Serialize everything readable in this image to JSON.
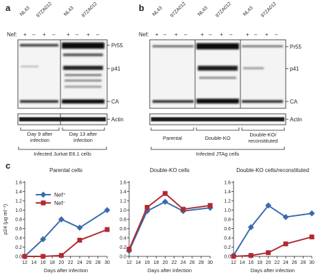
{
  "panel_a": {
    "label": "a",
    "lanes": [
      "NL43",
      "97ZA012",
      "NL43",
      "97ZA012"
    ],
    "nef_label": "Nef:",
    "nef_signs": [
      "+",
      "–",
      "+",
      "–",
      "+",
      "–",
      "+",
      "–"
    ],
    "bands": [
      "Pr55",
      "p41",
      "CA"
    ],
    "actin": "Actin",
    "groups": [
      "Day 9 after infection",
      "Day 13 after infection"
    ],
    "footer": "Infected Jurkat E6.1 cells"
  },
  "panel_b": {
    "label": "b",
    "lanes": [
      "NL43",
      "97ZA012",
      "NL43",
      "97ZA012",
      "NL43",
      "97ZA012"
    ],
    "nef_label": "Nef:",
    "nef_signs": [
      "+",
      "–",
      "+",
      "–",
      "+",
      "–",
      "+",
      "–",
      "+",
      "–",
      "+",
      "–"
    ],
    "bands": [
      "Pr55",
      "p41",
      "CA"
    ],
    "actin": "Actin",
    "groups": [
      "Parental",
      "Double-KO",
      "Double-KO/ reconstituted"
    ],
    "footer": "Infected JTAg cells"
  },
  "panel_c": {
    "label": "c",
    "ylabel": "p24 (µg ml⁻¹)",
    "xlabel": "Days after infection",
    "legend": [
      "Nef⁺",
      "Nef⁻"
    ],
    "colors": {
      "nef_plus": "#3a6bb0",
      "nef_minus": "#b02a30"
    },
    "chart_data": [
      {
        "type": "line",
        "title": "Parental cells",
        "xlabel": "Days after infection",
        "ylabel": "p24 (µg ml⁻¹)",
        "xlim": [
          12,
          30
        ],
        "ylim": [
          0,
          1.6
        ],
        "xticks": [
          12,
          14,
          16,
          18,
          20,
          22,
          24,
          26,
          28,
          30
        ],
        "yticks": [
          0,
          0.2,
          0.4,
          0.6,
          0.8,
          1.0,
          1.2,
          1.4,
          1.6
        ],
        "series": [
          {
            "name": "Nef⁺",
            "x": [
              12,
              16,
              20,
              24,
              30
            ],
            "y": [
              0.0,
              0.37,
              0.8,
              0.62,
              1.0
            ]
          },
          {
            "name": "Nef⁻",
            "x": [
              12,
              16,
              20,
              24,
              30
            ],
            "y": [
              0.0,
              0.0,
              0.02,
              0.35,
              0.58
            ]
          }
        ]
      },
      {
        "type": "line",
        "title": "Double-KO cells",
        "xlabel": "Days after infection",
        "ylabel": "",
        "xlim": [
          12,
          30
        ],
        "ylim": [
          0,
          1.6
        ],
        "xticks": [
          12,
          14,
          16,
          18,
          20,
          22,
          24,
          26,
          28,
          30
        ],
        "yticks": [
          0,
          0.2,
          0.4,
          0.6,
          0.8,
          1.0,
          1.2,
          1.4,
          1.6
        ],
        "series": [
          {
            "name": "Nef⁺",
            "x": [
              12,
              16,
              20,
              24,
              30
            ],
            "y": [
              0.12,
              0.98,
              1.18,
              0.98,
              1.05
            ]
          },
          {
            "name": "Nef⁻",
            "x": [
              12,
              16,
              20,
              24,
              30
            ],
            "y": [
              0.15,
              1.06,
              1.36,
              1.02,
              1.1
            ]
          }
        ]
      },
      {
        "type": "line",
        "title": "Double-KO cells/reconstituted",
        "xlabel": "Days after infection",
        "ylabel": "",
        "xlim": [
          12,
          30
        ],
        "ylim": [
          0,
          1.6
        ],
        "xticks": [
          12,
          14,
          16,
          18,
          20,
          22,
          24,
          26,
          28,
          30
        ],
        "yticks": [
          0,
          0.2,
          0.4,
          0.6,
          0.8,
          1.0,
          1.2,
          1.4,
          1.6
        ],
        "series": [
          {
            "name": "Nef⁺",
            "x": [
              12,
              16,
              20,
              24,
              30
            ],
            "y": [
              0.02,
              0.63,
              1.1,
              0.85,
              0.93
            ]
          },
          {
            "name": "Nef⁻",
            "x": [
              12,
              16,
              20,
              24,
              30
            ],
            "y": [
              0.0,
              0.02,
              0.08,
              0.27,
              0.42
            ]
          }
        ]
      }
    ]
  }
}
